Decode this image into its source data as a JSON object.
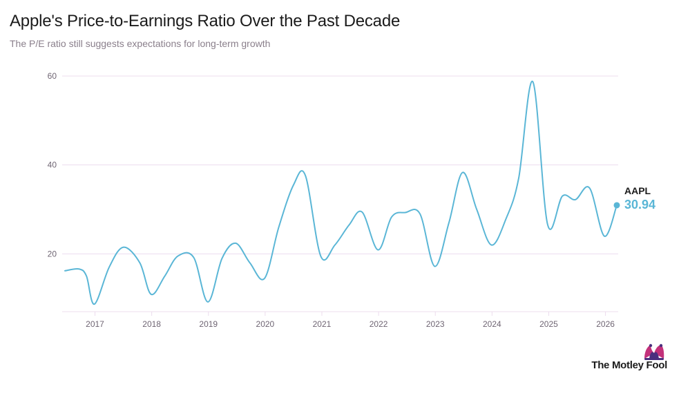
{
  "header": {
    "title": "Apple's Price-to-Earnings Ratio Over the Past Decade",
    "subtitle": "The P/E ratio still suggests expectations for long-term growth"
  },
  "colors": {
    "line": "#5ab6d6",
    "grid": "#ecdcee",
    "text": "#1b1b1b",
    "muted": "#6f6573",
    "brand_magenta": "#c3317a",
    "brand_purple": "#4b2f7e"
  },
  "chart_data": {
    "type": "line",
    "title": "Apple's Price-to-Earnings Ratio Over the Past Decade",
    "subtitle": "The P/E ratio still suggests expectations for long-term growth",
    "xlabel": "",
    "ylabel": "",
    "x_ticks": [
      "2017",
      "2018",
      "2019",
      "2020",
      "2021",
      "2022",
      "2023",
      "2024",
      "2025",
      "2026"
    ],
    "y_ticks": [
      20,
      40,
      60
    ],
    "xlim": [
      2016.47,
      2026.2
    ],
    "ylim": [
      7,
      60
    ],
    "grid": true,
    "legend": "none",
    "series": [
      {
        "name": "AAPL",
        "end_label": "30.94",
        "points": [
          [
            2016.47,
            16.2
          ],
          [
            2016.72,
            16.6
          ],
          [
            2016.85,
            15.0
          ],
          [
            2016.99,
            8.7
          ],
          [
            2017.25,
            17.0
          ],
          [
            2017.5,
            21.5
          ],
          [
            2017.79,
            18.0
          ],
          [
            2017.99,
            10.9
          ],
          [
            2018.23,
            15.0
          ],
          [
            2018.46,
            19.5
          ],
          [
            2018.74,
            19.2
          ],
          [
            2018.99,
            9.2
          ],
          [
            2019.24,
            19.0
          ],
          [
            2019.48,
            22.4
          ],
          [
            2019.73,
            18.0
          ],
          [
            2019.99,
            14.5
          ],
          [
            2020.24,
            26.0
          ],
          [
            2020.5,
            35.5
          ],
          [
            2020.71,
            37.6
          ],
          [
            2020.98,
            19.5
          ],
          [
            2021.23,
            22.0
          ],
          [
            2021.48,
            26.5
          ],
          [
            2021.71,
            29.4
          ],
          [
            2021.99,
            20.9
          ],
          [
            2022.23,
            28.3
          ],
          [
            2022.47,
            29.3
          ],
          [
            2022.73,
            29.0
          ],
          [
            2022.99,
            17.2
          ],
          [
            2023.24,
            27.0
          ],
          [
            2023.48,
            38.3
          ],
          [
            2023.73,
            30.0
          ],
          [
            2023.99,
            22.0
          ],
          [
            2024.25,
            28.0
          ],
          [
            2024.47,
            37.0
          ],
          [
            2024.72,
            58.7
          ],
          [
            2024.98,
            26.6
          ],
          [
            2025.24,
            33.0
          ],
          [
            2025.47,
            32.2
          ],
          [
            2025.72,
            34.8
          ],
          [
            2025.98,
            24.0
          ],
          [
            2026.2,
            30.94
          ]
        ]
      }
    ]
  },
  "brand": {
    "name": "The Motley Fool",
    "icon": "jester-hat-icon"
  }
}
